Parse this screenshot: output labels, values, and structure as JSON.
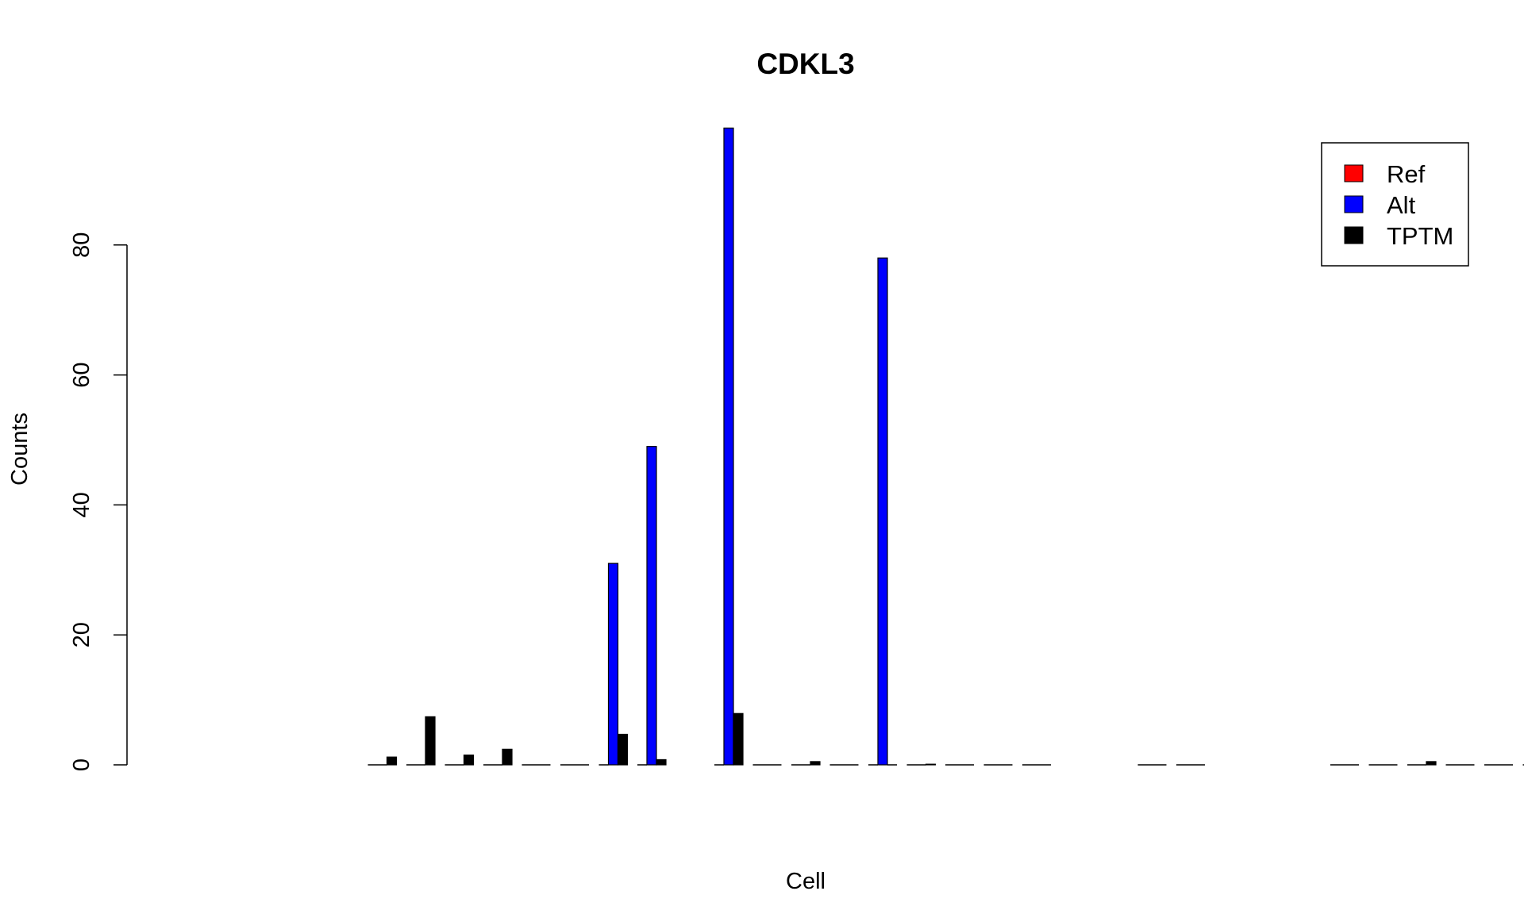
{
  "chart_data": {
    "type": "bar",
    "title": "CDKL3",
    "xlabel": "Cell",
    "ylabel": "Counts",
    "ylim": [
      0,
      100
    ],
    "yticks": [
      0,
      20,
      40,
      60,
      80
    ],
    "grid": false,
    "legend_position": "top-right",
    "slots": [
      0,
      1,
      2,
      3,
      4,
      5,
      6,
      7,
      8,
      9,
      10,
      11,
      12,
      13,
      14,
      15,
      16,
      17,
      18,
      19,
      20,
      21,
      22,
      23,
      24,
      25,
      26,
      27,
      28,
      29,
      30,
      31,
      32
    ],
    "present_slots": [
      3,
      4,
      5,
      6,
      7,
      8,
      9,
      10,
      12,
      13,
      14,
      15,
      16,
      17,
      18,
      19,
      20,
      23,
      24,
      28,
      29,
      30,
      31,
      32,
      33
    ],
    "series": [
      {
        "name": "Ref",
        "color": "#ff0000",
        "values": [
          0,
          0,
          0,
          0,
          0,
          0,
          0,
          0,
          0,
          0,
          0,
          0,
          0,
          0,
          0,
          0,
          0,
          0,
          0,
          0,
          0,
          0,
          0,
          0,
          0
        ]
      },
      {
        "name": "Alt",
        "color": "#0000ff",
        "values": [
          0,
          0,
          0,
          0,
          0,
          0,
          31,
          49,
          98,
          0,
          0,
          0,
          78,
          0,
          0,
          0,
          0,
          0,
          0,
          0,
          0,
          0,
          0,
          0,
          0
        ]
      },
      {
        "name": "TPTM",
        "color": "#000000",
        "values": [
          1.2,
          7.4,
          1.5,
          2.4,
          0,
          0,
          4.7,
          0.8,
          7.9,
          0,
          0.5,
          0,
          0,
          0.1,
          0,
          0,
          0,
          0,
          0,
          0,
          0,
          0.5,
          0,
          0,
          0
        ]
      }
    ]
  }
}
